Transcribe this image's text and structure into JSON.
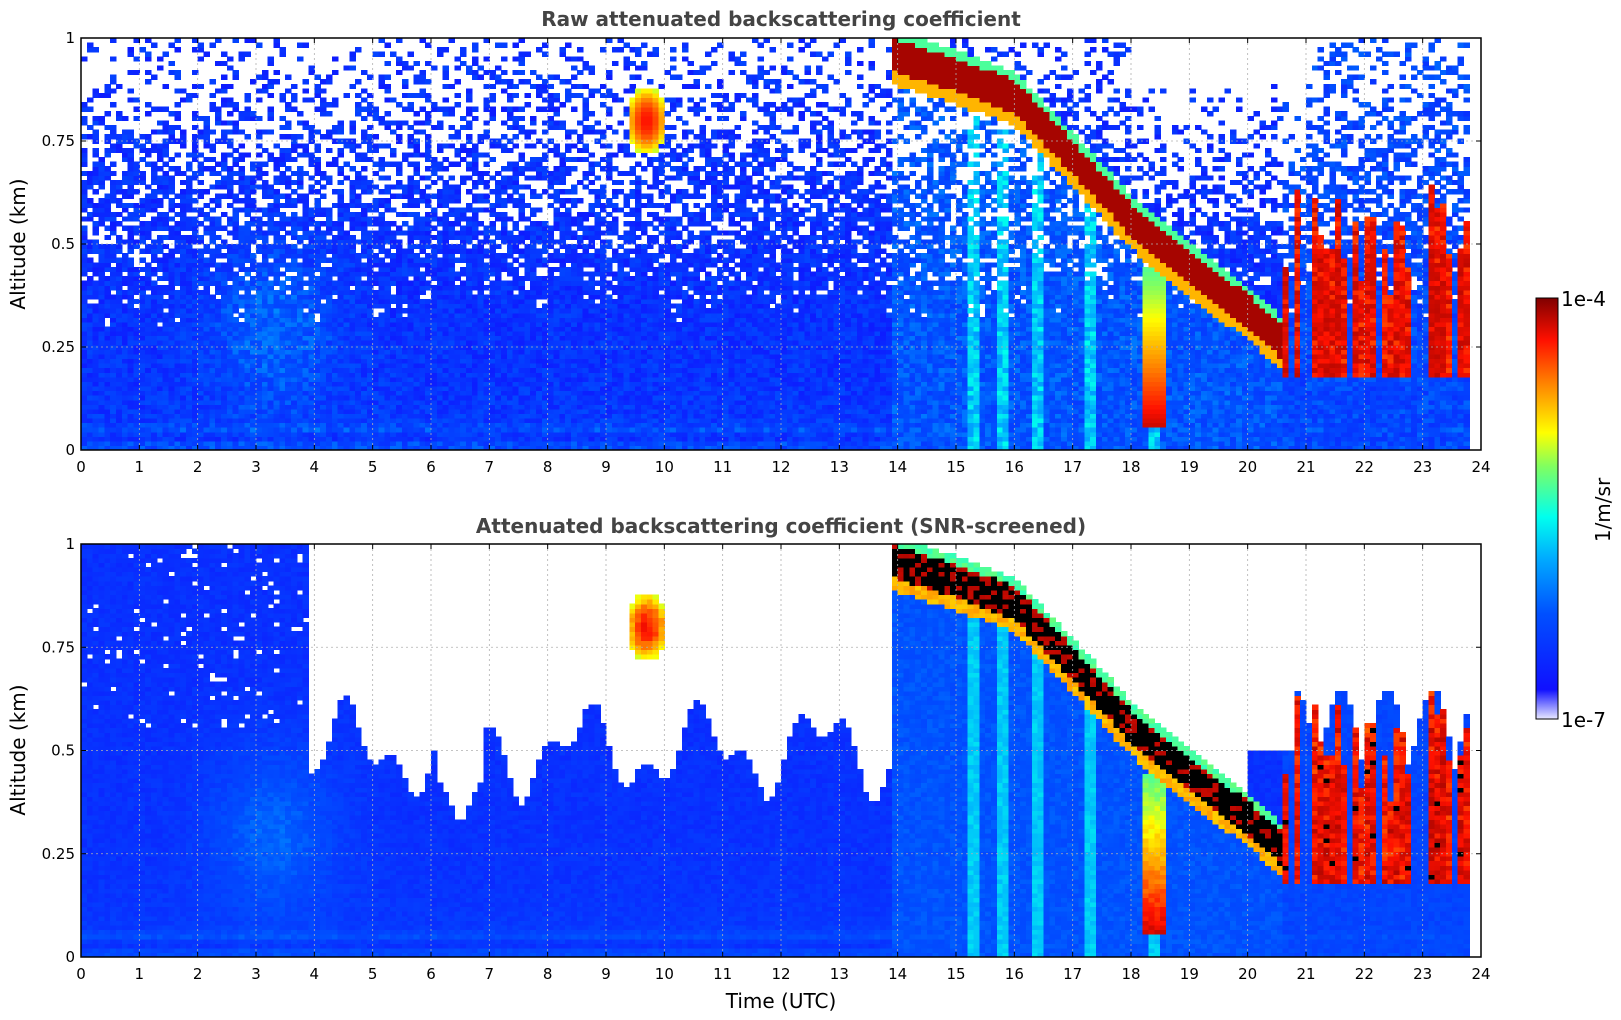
{
  "chart_data": [
    {
      "type": "heatmap",
      "title": "Raw attenuated backscattering coefficient",
      "xlabel": "",
      "ylabel": "Altitude (km)",
      "xlim": [
        0,
        24
      ],
      "ylim": [
        0,
        1
      ],
      "xticks": [
        "0",
        "1",
        "2",
        "3",
        "4",
        "5",
        "6",
        "7",
        "8",
        "9",
        "10",
        "11",
        "12",
        "13",
        "14",
        "15",
        "16",
        "17",
        "18",
        "19",
        "20",
        "21",
        "22",
        "23",
        "24"
      ],
      "yticks": [
        "0",
        "0.25",
        "0.5",
        "0.75",
        "1"
      ],
      "grid": true,
      "layer": {
        "top_altitude_km": [
          {
            "t": 13.9,
            "alt": 1.0
          },
          {
            "t": 15.0,
            "alt": 0.95
          },
          {
            "t": 16.0,
            "alt": 0.9
          },
          {
            "t": 17.0,
            "alt": 0.75
          },
          {
            "t": 18.0,
            "alt": 0.6
          },
          {
            "t": 19.0,
            "alt": 0.48
          },
          {
            "t": 20.0,
            "alt": 0.38
          },
          {
            "t": 20.6,
            "alt": 0.3
          }
        ]
      },
      "aerosol_plume": {
        "t_center": 3.3,
        "alt_center": 0.3
      },
      "isolated_echo": {
        "t_center": 9.7,
        "alt_center": 0.8
      }
    },
    {
      "type": "heatmap",
      "title": "Attenuated backscattering coefficient (SNR-screened)",
      "xlabel": "Time (UTC)",
      "ylabel": "Altitude (km)",
      "xlim": [
        0,
        24
      ],
      "ylim": [
        0,
        1
      ],
      "xticks": [
        "0",
        "1",
        "2",
        "3",
        "4",
        "5",
        "6",
        "7",
        "8",
        "9",
        "10",
        "11",
        "12",
        "13",
        "14",
        "15",
        "16",
        "17",
        "18",
        "19",
        "20",
        "21",
        "22",
        "23",
        "24"
      ],
      "yticks": [
        "0",
        "0.25",
        "0.5",
        "0.75",
        "1"
      ],
      "grid": true,
      "screened_color": "#000000"
    }
  ],
  "colorbar": {
    "label": "1/m/sr",
    "max_label": "1e-4",
    "min_label": "1e-7",
    "scale": "log",
    "colors": [
      "#e8e8ff",
      "#0000ff",
      "#1e90ff",
      "#00ffff",
      "#ffff00",
      "#ff8000",
      "#ff0000",
      "#800000"
    ]
  }
}
